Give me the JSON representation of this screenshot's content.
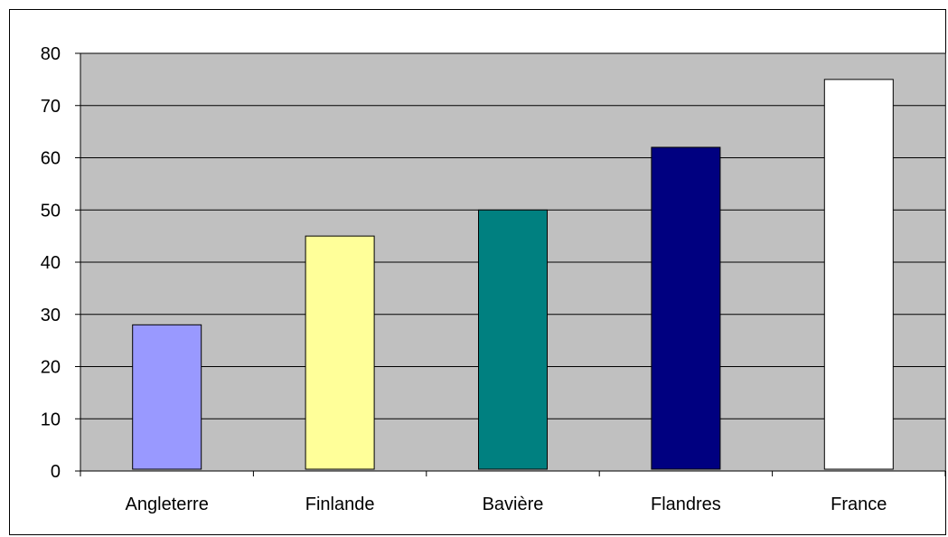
{
  "chart_data": {
    "type": "bar",
    "title": "",
    "xlabel": "",
    "ylabel": "",
    "categories": [
      "Angleterre",
      "Finlande",
      "Bavière",
      "Flandres",
      "France"
    ],
    "values": [
      28,
      45,
      50,
      62,
      75
    ],
    "colors": [
      "#9999ff",
      "#ffff99",
      "#008080",
      "#000080",
      "#ffffff"
    ],
    "plot_background": "#c0c0c0",
    "ylim": [
      0,
      80
    ],
    "y_ticks": [
      0,
      10,
      20,
      30,
      40,
      50,
      60,
      70,
      80
    ],
    "grid": true,
    "legend": false
  }
}
